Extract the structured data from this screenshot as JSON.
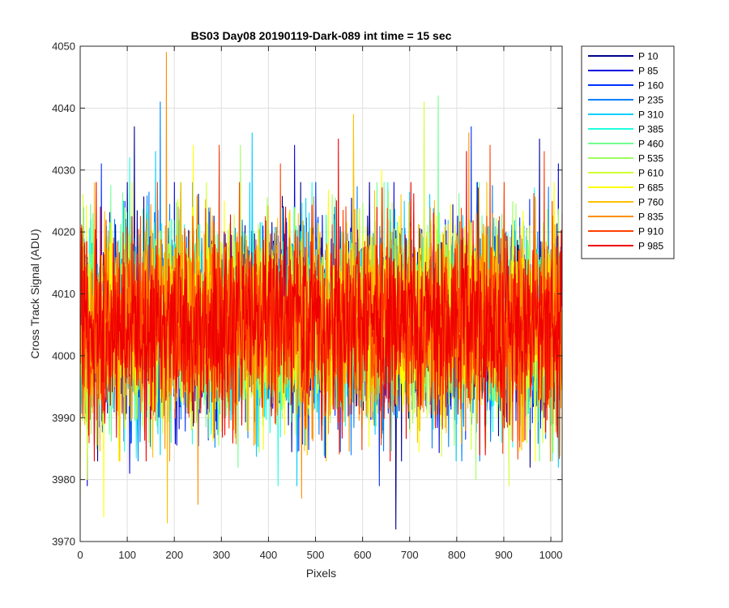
{
  "chart_data": {
    "type": "line",
    "title": "BS03 Day08 20190119-Dark-089 int time = 15 sec",
    "xlabel": "Pixels",
    "ylabel": "Cross Track Signal (ADU)",
    "xlim": [
      0,
      1024
    ],
    "ylim": [
      3970,
      4050
    ],
    "xticks": [
      0,
      100,
      200,
      300,
      400,
      500,
      600,
      700,
      800,
      900,
      1000
    ],
    "yticks": [
      3970,
      3980,
      3990,
      4000,
      4010,
      4020,
      4030,
      4040,
      4050
    ],
    "grid": true,
    "legend_position": "outside-top-right",
    "x_count": 1024,
    "series": [
      {
        "name": "P 10",
        "color": "#00008f",
        "mean": 4005,
        "spread": 7.5,
        "peaks": [
          [
            115,
            4037
          ],
          [
            670,
            3972
          ],
          [
            975,
            4035
          ],
          [
            955,
            3982
          ]
        ]
      },
      {
        "name": "P 85",
        "color": "#0000df",
        "mean": 4005,
        "spread": 7.5,
        "peaks": [
          [
            15,
            3979
          ],
          [
            105,
            3981
          ],
          [
            455,
            4034
          ],
          [
            1015,
            4031
          ]
        ]
      },
      {
        "name": "P 160",
        "color": "#0030ff",
        "mean": 4005,
        "spread": 7.5,
        "peaks": [
          [
            45,
            4031
          ],
          [
            295,
            4033
          ],
          [
            635,
            3979
          ],
          [
            830,
            4037
          ]
        ]
      },
      {
        "name": "P 235",
        "color": "#0080ff",
        "mean": 4005,
        "spread": 7.5,
        "peaks": [
          [
            170,
            4041
          ],
          [
            575,
            3984
          ],
          [
            810,
            3983
          ]
        ]
      },
      {
        "name": "P 310",
        "color": "#00d0ff",
        "mean": 4005,
        "spread": 7.5,
        "peaks": [
          [
            160,
            4033
          ],
          [
            365,
            4036
          ],
          [
            460,
            3979
          ],
          [
            1015,
            3982
          ]
        ]
      },
      {
        "name": "P 385",
        "color": "#20ffdf",
        "mean": 4005,
        "spread": 7.5,
        "peaks": [
          [
            105,
            4032
          ],
          [
            420,
            3979
          ],
          [
            895,
            3986
          ]
        ]
      },
      {
        "name": "P 460",
        "color": "#70ff8f",
        "mean": 4005,
        "spread": 7.5,
        "peaks": [
          [
            760,
            4042
          ],
          [
            335,
            3982
          ],
          [
            35,
            3985
          ]
        ]
      },
      {
        "name": "P 535",
        "color": "#a0ff60",
        "mean": 4005,
        "spread": 7.5,
        "peaks": [
          [
            340,
            4034
          ],
          [
            840,
            3980
          ],
          [
            150,
            3985
          ]
        ]
      },
      {
        "name": "P 610",
        "color": "#d0ff30",
        "mean": 4005,
        "spread": 7.5,
        "peaks": [
          [
            730,
            4041
          ],
          [
            910,
            3979
          ],
          [
            15,
            3980
          ]
        ]
      },
      {
        "name": "P 685",
        "color": "#ffff00",
        "mean": 4005,
        "spread": 7.5,
        "peaks": [
          [
            50,
            3974
          ],
          [
            240,
            4034
          ],
          [
            640,
            4030
          ]
        ]
      },
      {
        "name": "P 760",
        "color": "#ffc000",
        "mean": 4005,
        "spread": 7.5,
        "peaks": [
          [
            185,
            3973
          ],
          [
            580,
            4039
          ],
          [
            0,
            3977
          ]
        ]
      },
      {
        "name": "P 835",
        "color": "#ff8f00",
        "mean": 4005,
        "spread": 7.5,
        "peaks": [
          [
            183,
            4049
          ],
          [
            250,
            3976
          ],
          [
            825,
            4036
          ],
          [
            470,
            3977
          ]
        ]
      },
      {
        "name": "P 910",
        "color": "#ff4000",
        "mean": 4005,
        "spread": 7.5,
        "peaks": [
          [
            295,
            4034
          ],
          [
            425,
            4031
          ],
          [
            870,
            4034
          ],
          [
            985,
            4033
          ]
        ]
      },
      {
        "name": "P 985",
        "color": "#ef0000",
        "mean": 4005,
        "spread": 7.5,
        "peaks": [
          [
            548,
            4035
          ],
          [
            820,
            4033
          ],
          [
            860,
            3984
          ]
        ]
      }
    ]
  }
}
